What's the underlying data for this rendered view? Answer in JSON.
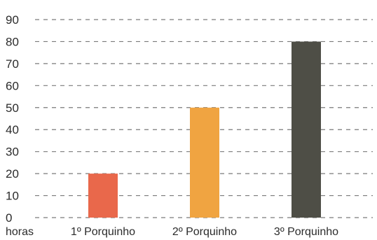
{
  "chart_data": {
    "type": "bar",
    "title": "",
    "xlabel": "",
    "ylabel": "",
    "unit_label": "horas",
    "categories": [
      "1º Porquinho",
      "2º Porquinho",
      "3º Porquinho"
    ],
    "values": [
      20,
      50,
      80
    ],
    "colors": [
      "#e9684b",
      "#f0a441",
      "#4e4e46"
    ],
    "ylim": [
      0,
      90
    ],
    "yticks": [
      0,
      10,
      20,
      30,
      40,
      50,
      60,
      70,
      80,
      90
    ],
    "grid": true,
    "legend": "none"
  }
}
